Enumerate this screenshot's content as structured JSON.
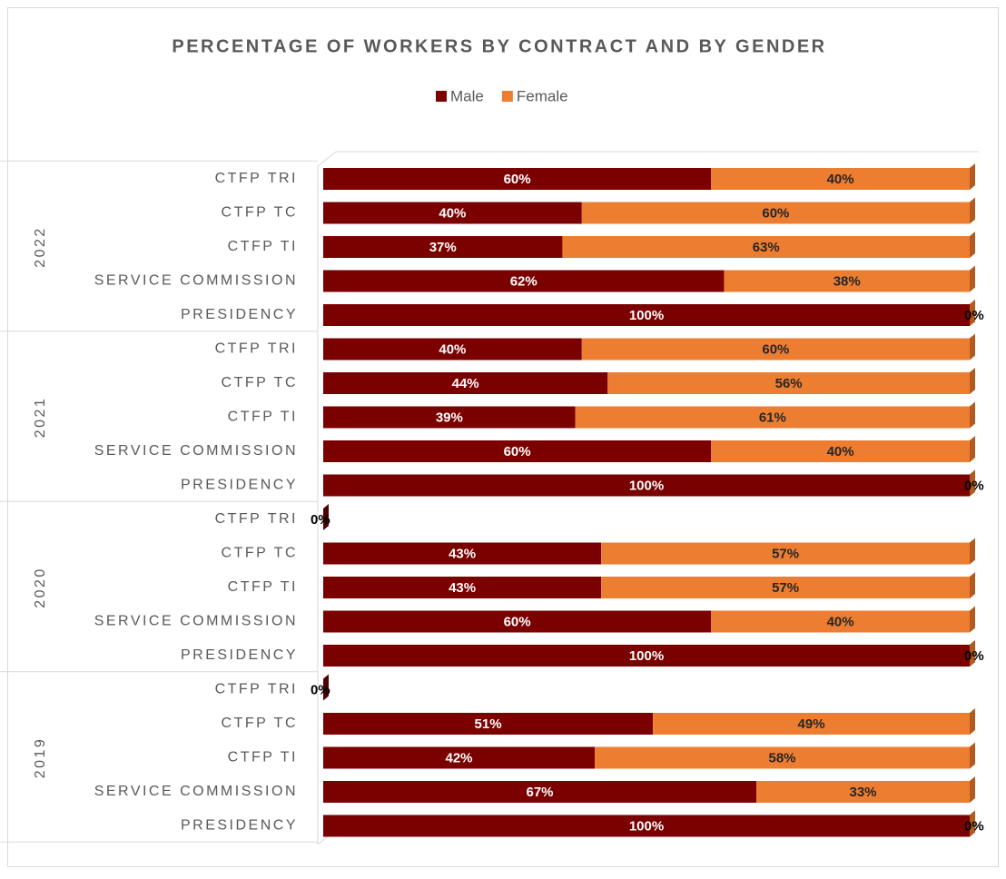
{
  "chart_data": {
    "type": "stacked-bar-horizontal",
    "title": "PERCENTAGE OF WORKERS BY CONTRACT AND BY GENDER",
    "group_labels": [
      "2022",
      "2021",
      "2020",
      "2019"
    ],
    "categories": [
      "CTFP TRI",
      "CTFP TC",
      "CTFP TI",
      "SERVICE COMMISSION",
      "PRESIDENCY",
      "CTFP TRI",
      "CTFP TC",
      "CTFP TI",
      "SERVICE COMMISSION",
      "PRESIDENCY",
      "CTFP TRI",
      "CTFP TC",
      "CTFP TI",
      "SERVICE COMMISSION",
      "PRESIDENCY",
      "CTFP TRI",
      "CTFP TC",
      "CTFP TI",
      "SERVICE COMMISSION",
      "PRESIDENCY"
    ],
    "xlim": [
      0,
      100
    ],
    "legend": "top",
    "series": [
      {
        "name": "Male",
        "color": "#7b0000",
        "values": [
          60,
          40,
          37,
          62,
          100,
          40,
          44,
          39,
          60,
          100,
          0,
          43,
          43,
          60,
          100,
          0,
          51,
          42,
          67,
          100
        ],
        "value_labels": [
          "60%",
          "40%",
          "37%",
          "62%",
          "100%",
          "40%",
          "44%",
          "39%",
          "60%",
          "100%",
          "0%",
          "43%",
          "43%",
          "60%",
          "100%",
          "0%",
          "51%",
          "42%",
          "67%",
          "100%"
        ]
      },
      {
        "name": "Female",
        "color": "#ed7d31",
        "values": [
          40,
          60,
          63,
          38,
          0,
          60,
          56,
          61,
          40,
          0,
          null,
          57,
          57,
          40,
          0,
          null,
          49,
          58,
          33,
          0
        ],
        "value_labels": [
          "40%",
          "60%",
          "63%",
          "38%",
          "0%",
          "60%",
          "56%",
          "61%",
          "40%",
          "0%",
          null,
          "57%",
          "57%",
          "40%",
          "0%",
          null,
          "49%",
          "58%",
          "33%",
          "0%"
        ]
      }
    ]
  }
}
